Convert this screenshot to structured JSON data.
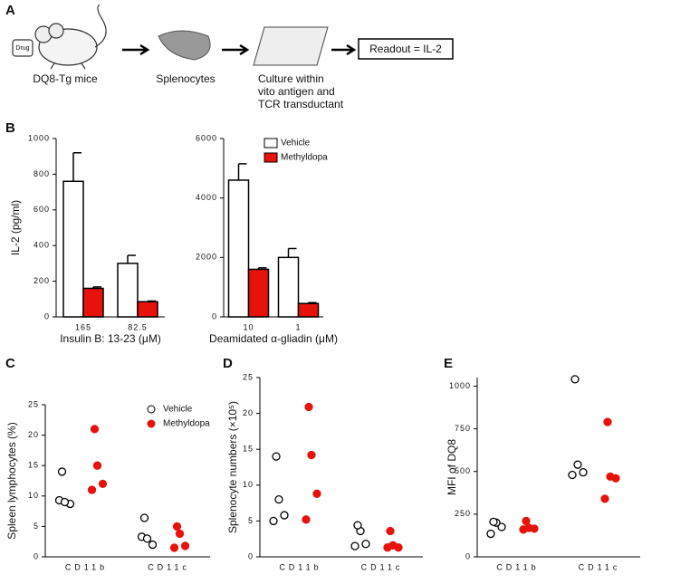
{
  "diagram": {
    "panel": "A",
    "drug": "Drug",
    "steps": [
      "DQ8-Tg mice",
      "Splenocytes"
    ],
    "culture": [
      "Culture within",
      "vito antigen and",
      "TCR transductant"
    ],
    "readout": "Readout = IL-2"
  },
  "chart_data": [
    {
      "type": "bar",
      "panel": "B",
      "ylabel": "IL-2 (pg/ml)",
      "xlabel": "Insulin B: 13-23 (μM)",
      "categories": [
        "165",
        "82.5"
      ],
      "series": [
        {
          "name": "Vehicle",
          "color": "#ffffff",
          "values": [
            760,
            300
          ],
          "errors": [
            160,
            45
          ]
        },
        {
          "name": "Methyldopa",
          "color": "#e8120c",
          "values": [
            160,
            85
          ],
          "errors": [
            8,
            4
          ]
        }
      ],
      "ylim": [
        0,
        1000
      ],
      "yticks": [
        0,
        200,
        400,
        600,
        800,
        1000
      ],
      "legend": false
    },
    {
      "type": "bar",
      "xlabel": "Deamidated α-gliadin (μM)",
      "categories": [
        "10",
        "1"
      ],
      "series": [
        {
          "name": "Vehicle",
          "color": "#ffffff",
          "values": [
            4600,
            2000
          ],
          "errors": [
            550,
            300
          ]
        },
        {
          "name": "Methyldopa",
          "color": "#e8120c",
          "values": [
            1600,
            450
          ],
          "errors": [
            50,
            30
          ]
        }
      ],
      "ylim": [
        0,
        6000
      ],
      "yticks": [
        0,
        2000,
        4000,
        6000
      ],
      "legend": true
    },
    {
      "type": "dot",
      "panel": "C",
      "ylabel": "Spleen lymphocytes (%)",
      "categories": [
        "CD11b",
        "CD11c"
      ],
      "series": [
        {
          "name": "Vehicle",
          "color": "#ffffff",
          "values": [
            [
              9.3,
              8.7,
              9,
              14
            ],
            [
              3.3,
              2,
              3,
              6.4
            ]
          ]
        },
        {
          "name": "Methyldopa",
          "color": "#e8120c",
          "values": [
            [
              11,
              12,
              15,
              21
            ],
            [
              1.5,
              1.8,
              3.8,
              5
            ]
          ]
        }
      ],
      "ylim": [
        0,
        25
      ],
      "yticks": [
        0,
        5,
        10,
        15,
        20,
        25
      ],
      "legend": true
    },
    {
      "type": "dot",
      "panel": "D",
      "ylabel": "Splenocyte numbers (×10⁵)",
      "categories": [
        "CD11b",
        "CD11c"
      ],
      "series": [
        {
          "name": "Vehicle",
          "color": "#ffffff",
          "values": [
            [
              5,
              5.8,
              8,
              14
            ],
            [
              1.5,
              1.8,
              3.6,
              4.4
            ]
          ]
        },
        {
          "name": "Methyldopa",
          "color": "#e8120c",
          "values": [
            [
              5.2,
              8.8,
              14.2,
              20.9
            ],
            [
              1.3,
              1.3,
              1.6,
              3.6
            ]
          ]
        }
      ],
      "ylim": [
        0,
        25
      ],
      "yticks": [
        0,
        5,
        10,
        15,
        20,
        25
      ],
      "legend": false
    },
    {
      "type": "dot",
      "panel": "E",
      "ylabel": "MFI of DQ8",
      "categories": [
        "CD11b",
        "CD11c"
      ],
      "series": [
        {
          "name": "Vehicle",
          "color": "#ffffff",
          "values": [
            [
              135,
              175,
              200,
              205
            ],
            [
              480,
              495,
              540,
              1040
            ]
          ]
        },
        {
          "name": "Methyldopa",
          "color": "#e8120c",
          "values": [
            [
              160,
              165,
              170,
              210
            ],
            [
              340,
              460,
              470,
              790
            ]
          ]
        }
      ],
      "ylim": [
        0,
        1050
      ],
      "yticks": [
        0,
        250,
        500,
        750,
        1000
      ],
      "legend": false
    }
  ]
}
